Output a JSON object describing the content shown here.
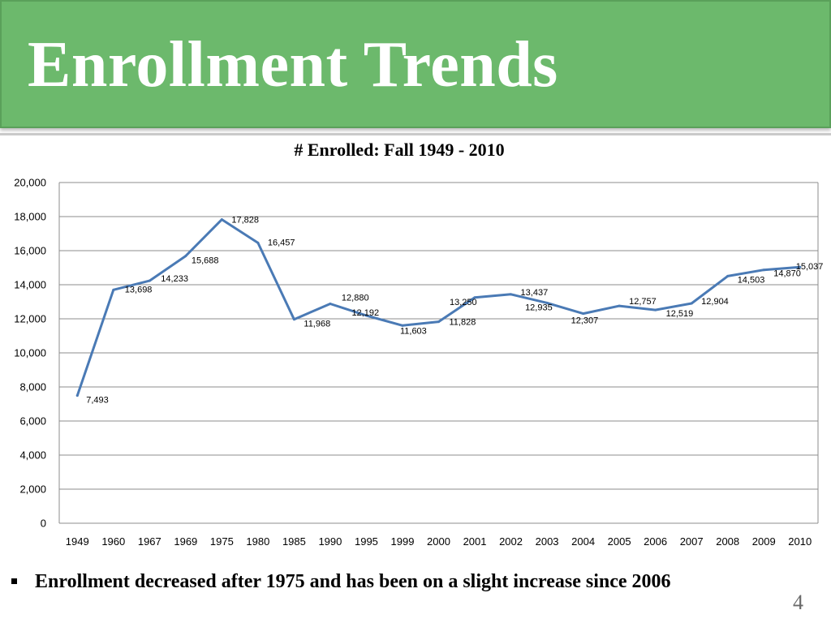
{
  "slide": {
    "title": "Enrollment Trends",
    "bullet": "Enrollment decreased after 1975 and has been on a slight increase since 2006",
    "page_number": "4"
  },
  "colors": {
    "banner": "#6cb96c",
    "line": "#4a7ab5",
    "grid": "#8c8c8c"
  },
  "chart_data": {
    "type": "line",
    "title": "# Enrolled: Fall 1949 - 2010",
    "xlabel": "",
    "ylabel": "",
    "ylim": [
      0,
      20000
    ],
    "yticks": [
      0,
      2000,
      4000,
      6000,
      8000,
      10000,
      12000,
      14000,
      16000,
      18000,
      20000
    ],
    "ytick_labels": [
      "0",
      "2,000",
      "4,000",
      "6,000",
      "8,000",
      "10,000",
      "12,000",
      "14,000",
      "16,000",
      "18,000",
      "20,000"
    ],
    "grid": true,
    "legend": "none",
    "categories": [
      "1949",
      "1960",
      "1967",
      "1969",
      "1975",
      "1980",
      "1985",
      "1990",
      "1995",
      "1999",
      "2000",
      "2001",
      "2002",
      "2003",
      "2004",
      "2005",
      "2006",
      "2007",
      "2008",
      "2009",
      "2010"
    ],
    "values": [
      7493,
      13698,
      14233,
      15688,
      17828,
      16457,
      11968,
      12880,
      12192,
      11603,
      11828,
      13250,
      13437,
      12935,
      12307,
      12757,
      12519,
      12904,
      14503,
      14870,
      15037
    ],
    "data_labels": [
      "7,493",
      "13,698",
      "14,233",
      "15,688",
      "17,828",
      "16,457",
      "11,968",
      "12,880",
      "12,192",
      "11,603",
      "11,828",
      "13,250",
      "13,437",
      "12,935",
      "12,307",
      "12,757",
      "12,519",
      "12,904",
      "14,503",
      "14,870",
      "15,037"
    ]
  }
}
